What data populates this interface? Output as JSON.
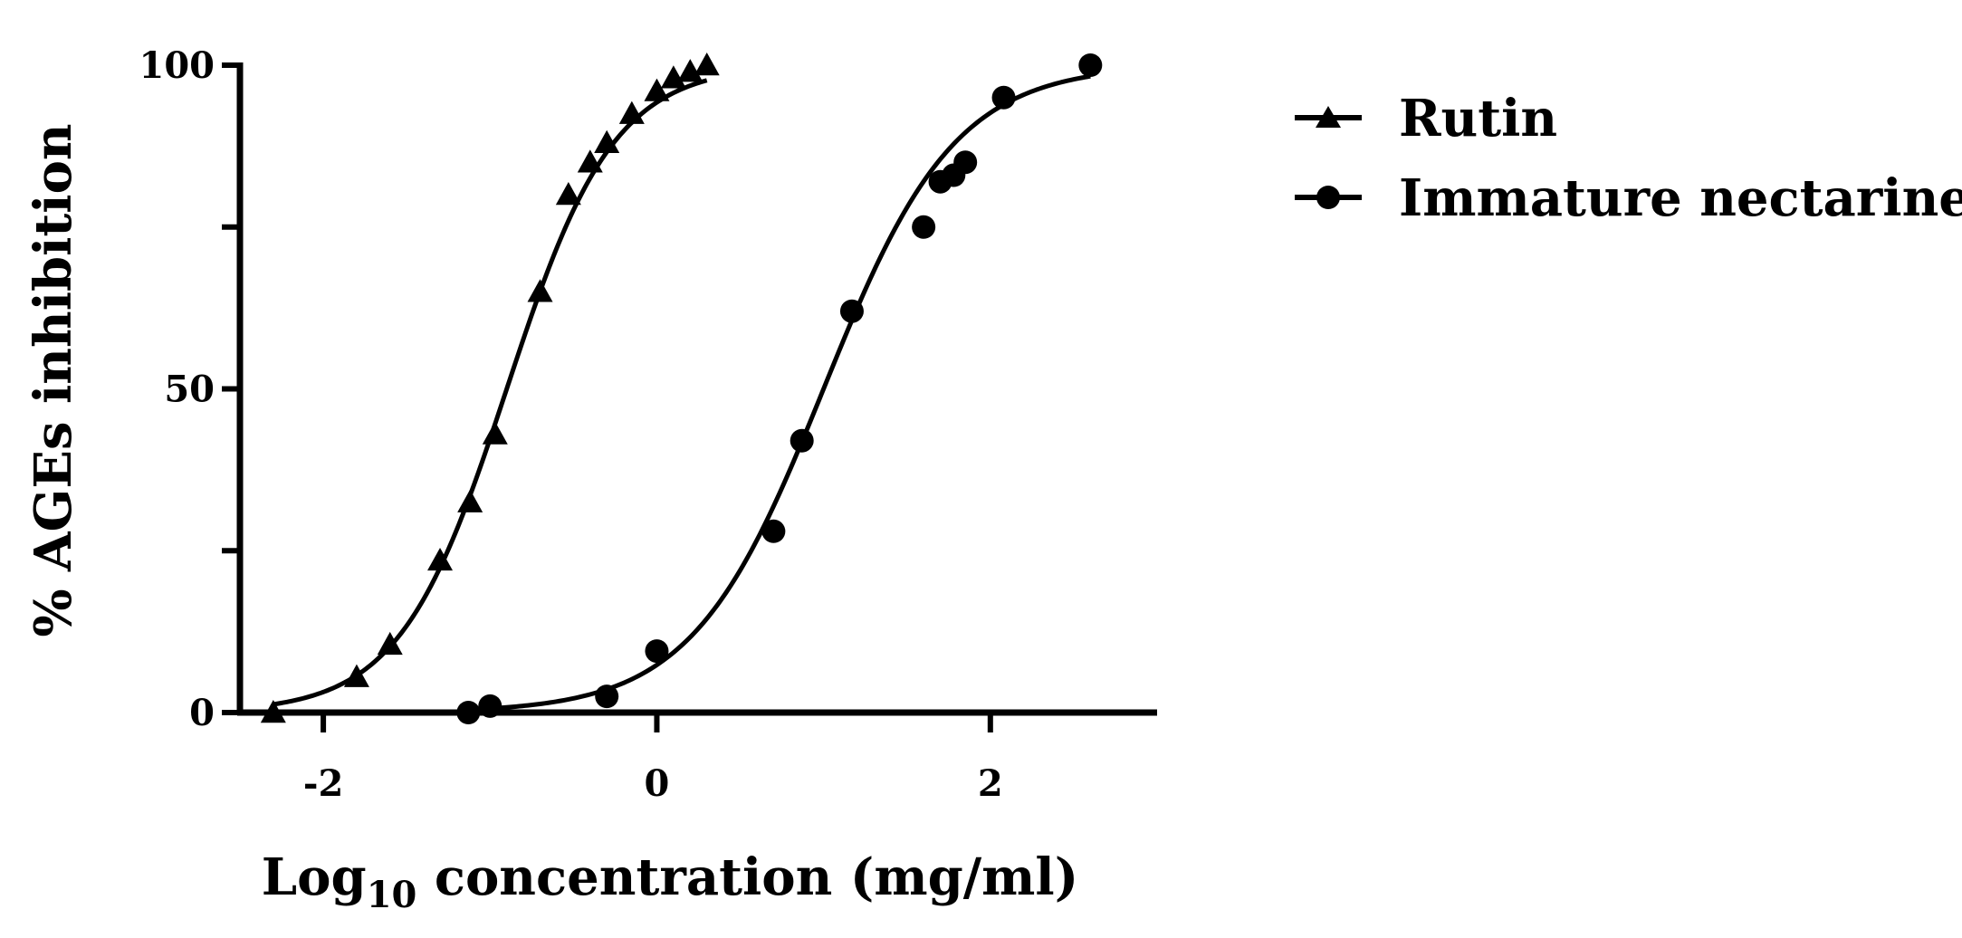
{
  "chart_data": {
    "type": "scatter",
    "title": "",
    "xlabel_main": "Log",
    "xlabel_sub": "10",
    "xlabel_rest": " concentration (mg/ml)",
    "ylabel": "% AGEs inhibition",
    "xlim": [
      -2.5,
      3.0
    ],
    "ylim": [
      0,
      100
    ],
    "x_ticks": [
      -2,
      0,
      2
    ],
    "x_tick_labels": [
      "-2",
      "0",
      "2"
    ],
    "y_ticks": [
      0,
      25,
      50,
      75,
      100
    ],
    "y_tick_labels": [
      "0",
      "",
      "50",
      "",
      "100"
    ],
    "grid": false,
    "legend_position": "top-right, outside plot",
    "series": [
      {
        "name": "Rutin",
        "marker": "triangle",
        "color": "#000000",
        "x": [
          -2.3,
          -1.8,
          -1.6,
          -1.3,
          -1.12,
          -0.97,
          -0.7,
          -0.53,
          -0.4,
          -0.3,
          -0.15,
          0.0,
          0.1,
          0.2,
          0.3
        ],
        "y": [
          0,
          5.5,
          10.5,
          23.5,
          32.5,
          43,
          65,
          80,
          85,
          88,
          92.5,
          96,
          98,
          99,
          100
        ],
        "fit": {
          "bottom": 0,
          "top": 100,
          "logEC50": -0.9,
          "hill": 1.35
        }
      },
      {
        "name": "Immature nectarine",
        "marker": "circle",
        "color": "#000000",
        "x": [
          -1.13,
          -1.0,
          -0.3,
          0.0,
          0.7,
          0.87,
          1.17,
          1.6,
          1.7,
          1.78,
          1.85,
          2.08,
          2.6
        ],
        "y": [
          0,
          1,
          2.5,
          9.5,
          28,
          42,
          62,
          75,
          82,
          83,
          85,
          95,
          100
        ],
        "fit": {
          "bottom": 0,
          "top": 100,
          "logEC50": 1.0,
          "hill": 1.1
        }
      }
    ]
  }
}
